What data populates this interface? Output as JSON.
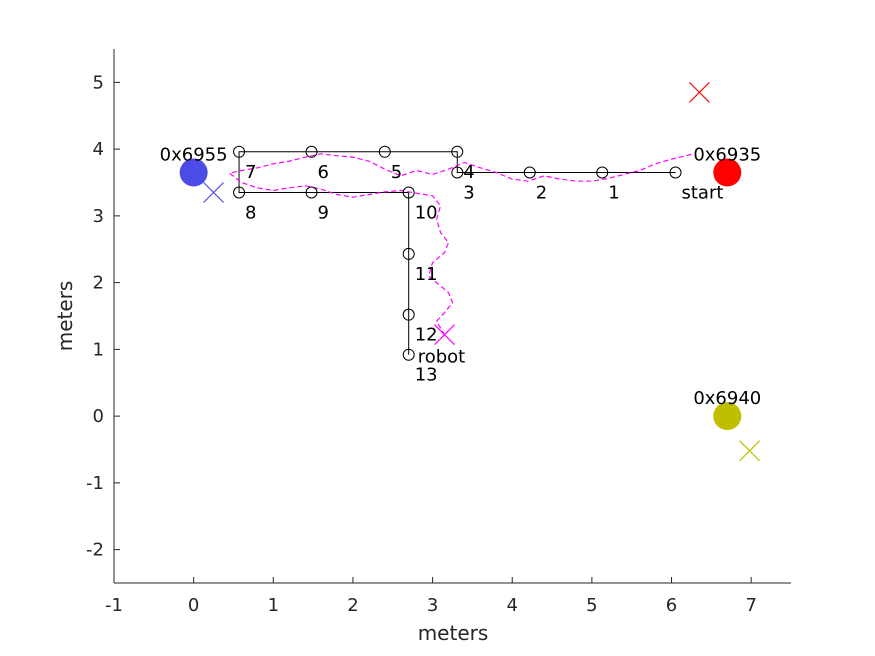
{
  "chart_data": {
    "type": "scatter",
    "xlabel": "meters",
    "ylabel": "meters",
    "xlim": [
      -1,
      7.5
    ],
    "ylim": [
      -2.5,
      5.5
    ],
    "xticks": [
      -1,
      0,
      1,
      2,
      3,
      4,
      5,
      6,
      7
    ],
    "yticks": [
      -2,
      -1,
      0,
      1,
      2,
      3,
      4,
      5
    ],
    "grid": false,
    "anchors": [
      {
        "label": "0x6935",
        "x": 6.7,
        "y": 3.65,
        "color": "#ff0000",
        "est_x": 6.35,
        "est_y": 4.85
      },
      {
        "label": "0x6955",
        "x": 0.0,
        "y": 3.65,
        "color": "#4b4be8",
        "est_x": 0.25,
        "est_y": 3.35
      },
      {
        "label": "0x6940",
        "x": 6.7,
        "y": 0.0,
        "color": "#bfbf00",
        "est_x": 6.98,
        "est_y": -0.52
      }
    ],
    "waypoints": [
      {
        "label": "start",
        "x": 6.05,
        "y": 3.65
      },
      {
        "label": "1",
        "x": 5.13,
        "y": 3.65
      },
      {
        "label": "2",
        "x": 4.22,
        "y": 3.65
      },
      {
        "label": "3",
        "x": 3.31,
        "y": 3.65
      },
      {
        "label": "4",
        "x": 3.31,
        "y": 3.96
      },
      {
        "label": "5",
        "x": 2.4,
        "y": 3.96
      },
      {
        "label": "6",
        "x": 1.48,
        "y": 3.96
      },
      {
        "label": "7",
        "x": 0.57,
        "y": 3.96
      },
      {
        "label": "8",
        "x": 0.57,
        "y": 3.35
      },
      {
        "label": "9",
        "x": 1.48,
        "y": 3.35
      },
      {
        "label": "10",
        "x": 2.7,
        "y": 3.35
      },
      {
        "label": "11",
        "x": 2.7,
        "y": 2.43
      },
      {
        "label": "12",
        "x": 2.7,
        "y": 1.52
      },
      {
        "label": "13",
        "x": 2.7,
        "y": 0.92
      }
    ],
    "robot": {
      "label": "robot",
      "x": 3.15,
      "y": 1.22,
      "color": "#ff00ff"
    },
    "trajectory": {
      "color": "#ff00ff",
      "x": [
        6.25,
        6.0,
        5.8,
        5.6,
        5.4,
        5.2,
        5.0,
        4.8,
        4.6,
        4.4,
        4.2,
        4.0,
        3.8,
        3.6,
        3.4,
        3.2,
        3.0,
        2.8,
        2.6,
        2.4,
        2.2,
        2.0,
        1.8,
        1.6,
        1.4,
        1.2,
        1.0,
        0.8,
        0.6,
        0.45,
        0.6,
        0.8,
        1.0,
        1.2,
        1.4,
        1.6,
        1.8,
        2.0,
        2.2,
        2.4,
        2.6,
        2.8,
        3.0,
        3.1,
        3.05,
        3.1,
        3.2,
        3.15,
        3.0,
        2.95,
        3.1,
        3.2,
        3.25,
        3.15,
        3.05,
        3.1,
        3.15
      ],
      "y": [
        3.92,
        3.85,
        3.78,
        3.68,
        3.62,
        3.56,
        3.52,
        3.52,
        3.55,
        3.6,
        3.52,
        3.55,
        3.65,
        3.72,
        3.8,
        3.7,
        3.62,
        3.68,
        3.6,
        3.7,
        3.82,
        3.88,
        3.9,
        3.93,
        3.88,
        3.82,
        3.78,
        3.72,
        3.68,
        3.64,
        3.5,
        3.42,
        3.38,
        3.42,
        3.45,
        3.4,
        3.32,
        3.28,
        3.32,
        3.36,
        3.38,
        3.34,
        3.3,
        3.15,
        2.95,
        2.75,
        2.6,
        2.45,
        2.3,
        2.1,
        1.95,
        1.85,
        1.7,
        1.55,
        1.42,
        1.32,
        1.22
      ]
    }
  }
}
